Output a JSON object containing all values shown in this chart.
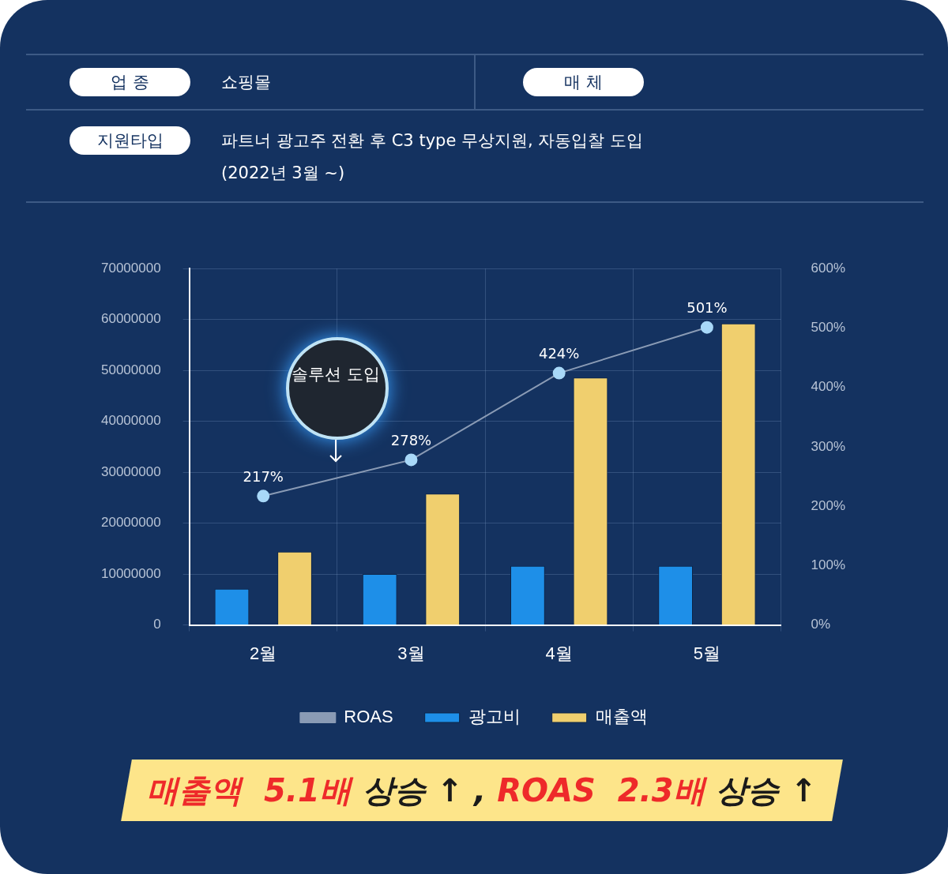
{
  "chart_data": {
    "type": "bar",
    "categories": [
      "2월",
      "3월",
      "4월",
      "5월"
    ],
    "series": [
      {
        "name": "광고비",
        "color": "#1e8fe8",
        "values": [
          7100000,
          10000000,
          11600000,
          11600000
        ]
      },
      {
        "name": "매출액",
        "color": "#f0cf6e",
        "values": [
          14400000,
          25800000,
          48600000,
          59200000
        ]
      },
      {
        "name": "ROAS",
        "type": "line",
        "axis": "y2",
        "color": "#8a9bb5",
        "values": [
          217,
          278,
          424,
          501
        ],
        "value_labels": [
          "217%",
          "278%",
          "424%",
          "501%"
        ]
      }
    ],
    "ylim": [
      0,
      70000000
    ],
    "yticks": [
      0,
      10000000,
      20000000,
      30000000,
      40000000,
      50000000,
      60000000,
      70000000
    ],
    "y2lim": [
      0,
      600
    ],
    "y2ticks": [
      {
        "value": 0,
        "label": "0%"
      },
      {
        "value": 100,
        "label": "100%"
      },
      {
        "value": 200,
        "label": "200%"
      },
      {
        "value": 300,
        "label": "300%"
      },
      {
        "value": 400,
        "label": "400%"
      },
      {
        "value": 500,
        "label": "500%"
      },
      {
        "value": 600,
        "label": "600%"
      }
    ],
    "grid": true,
    "legend": "bottom",
    "marker": "circle",
    "annotations": [
      "업 종",
      "쇼핑몰",
      "매 체",
      "지원타입",
      "파트너 광고주 전환 후 C3 type 무상지원, 자동입찰 도입",
      "(2022년 3월 ~)",
      "솔루션 도입",
      "매출액  5.1배",
      "상승 ↑ ,",
      "ROAS  2.3배",
      "상승 ↑"
    ]
  }
}
